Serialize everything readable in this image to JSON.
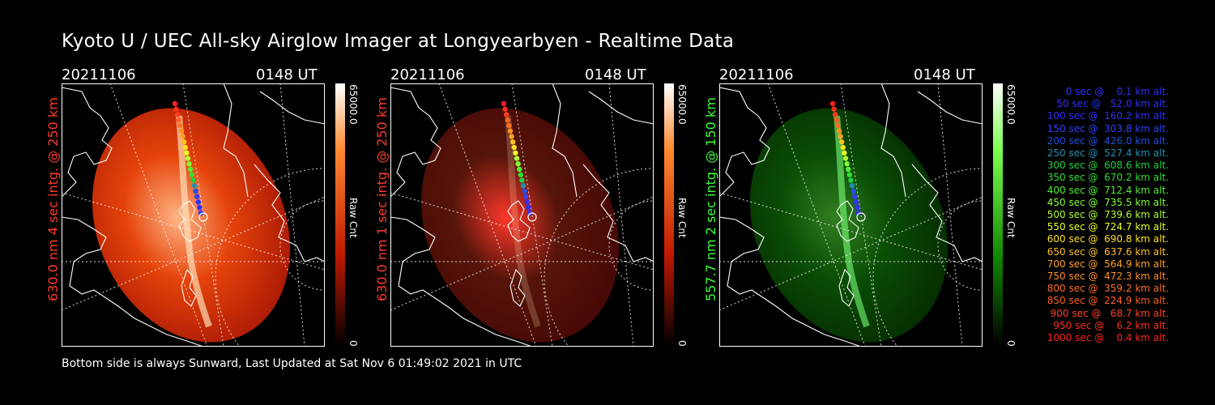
{
  "title": "Kyoto U / UEC All-sky Airglow Imager at Longyearbyen - Realtime Data",
  "panels": [
    {
      "date": "20211106",
      "time": "0148 UT",
      "label": "630.0 nm 4 sec intg. @ 250 km",
      "label_color": "#ff3b2a",
      "cb_max": "65000.0",
      "cb_min": "0",
      "cb_unit": "Raw Cnt",
      "cb_color": "#ff6a1a",
      "intensity": 0.95
    },
    {
      "date": "20211106",
      "time": "0148 UT",
      "label": "630.0 nm 1 sec intg. @ 250 km",
      "label_color": "#ff3b2a",
      "cb_max": "65000.0",
      "cb_min": "0",
      "cb_unit": "Raw Cnt",
      "cb_color": "#ff6a1a",
      "intensity": 0.3
    },
    {
      "date": "20211106",
      "time": "0148 UT",
      "label": "557.7 nm 2 sec intg. @ 150 km",
      "label_color": "#3cff3c",
      "cb_max": "65000.0",
      "cb_min": "0",
      "cb_unit": "Raw Cnt",
      "cb_color": "#4cff2a",
      "intensity": 0.55
    }
  ],
  "footer": "Bottom side is always Sunward, Last Updated at Sat Nov  6 01:49:02 2021 in UTC",
  "legend": [
    {
      "text": "0 sec @    0.1 km alt.",
      "color": "#3030ff"
    },
    {
      "text": "50 sec @   52.0 km alt.",
      "color": "#3030ff"
    },
    {
      "text": "100 sec @  160.2 km alt.",
      "color": "#3030ff"
    },
    {
      "text": "150 sec @  303.8 km alt.",
      "color": "#3040ff"
    },
    {
      "text": "200 sec @  426.0 km alt.",
      "color": "#2050e0"
    },
    {
      "text": "250 sec @  527.4 km alt.",
      "color": "#2090b0"
    },
    {
      "text": "300 sec @  608.6 km alt.",
      "color": "#20d040"
    },
    {
      "text": "350 sec @  670.2 km alt.",
      "color": "#30e030"
    },
    {
      "text": "400 sec @  712.4 km alt.",
      "color": "#50f030"
    },
    {
      "text": "450 sec @  735.5 km alt.",
      "color": "#80ff30"
    },
    {
      "text": "500 sec @  739.6 km alt.",
      "color": "#b0ff30"
    },
    {
      "text": "550 sec @  724.7 km alt.",
      "color": "#e8ff20"
    },
    {
      "text": "600 sec @  690.8 km alt.",
      "color": "#ffe020"
    },
    {
      "text": "650 sec @  637.6 km alt.",
      "color": "#ffc020"
    },
    {
      "text": "700 sec @  564.9 km alt.",
      "color": "#ffa020"
    },
    {
      "text": "750 sec @  472.3 km alt.",
      "color": "#ff9020"
    },
    {
      "text": "800 sec @  359.2 km alt.",
      "color": "#ff7020"
    },
    {
      "text": "850 sec @  224.9 km alt.",
      "color": "#ff6020"
    },
    {
      "text": "900 sec @   68.7 km alt.",
      "color": "#ff4020"
    },
    {
      "text": "950 sec @    6.2 km alt.",
      "color": "#ff3020"
    },
    {
      "text": "1000 sec @    0.4 km alt.",
      "color": "#ff2020"
    }
  ]
}
